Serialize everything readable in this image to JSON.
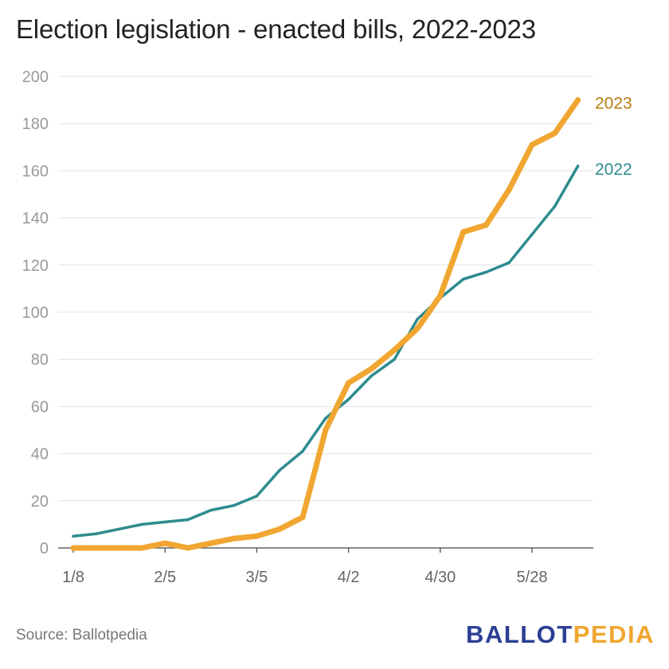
{
  "title": "Election legislation - enacted bills, 2022-2023",
  "source": "Source: Ballotpedia",
  "logo": {
    "part1": "BALLOT",
    "part2": "PEDIA"
  },
  "colors": {
    "series_2023": "#f0a630",
    "series_2022": "#2e8b8e",
    "label_2023": "#b77b0e",
    "label_2022": "#2e8b8e",
    "logo_blue": "#2b3f93",
    "logo_orange": "#f0a630"
  },
  "chart_data": {
    "type": "line",
    "title": "Election legislation - enacted bills, 2022-2023",
    "xlabel": "",
    "ylabel": "",
    "ylim": [
      0,
      200
    ],
    "yticks": [
      0,
      20,
      40,
      60,
      80,
      100,
      120,
      140,
      160,
      180,
      200
    ],
    "xticks": [
      "1/8",
      "2/5",
      "3/5",
      "4/2",
      "4/30",
      "5/28"
    ],
    "grid": true,
    "legend": "direct labels at line ends",
    "x": [
      "1/8",
      "1/15",
      "1/22",
      "1/29",
      "2/5",
      "2/12",
      "2/19",
      "2/26",
      "3/5",
      "3/12",
      "3/19",
      "3/26",
      "4/2",
      "4/9",
      "4/16",
      "4/23",
      "4/30",
      "5/7",
      "5/14",
      "5/21",
      "5/28",
      "6/4",
      "6/11"
    ],
    "series": [
      {
        "name": "2023",
        "values": [
          0,
          0,
          0,
          0,
          2,
          0,
          2,
          4,
          5,
          8,
          13,
          50,
          70,
          76,
          84,
          93,
          107,
          134,
          137,
          152,
          171,
          176,
          190
        ]
      },
      {
        "name": "2022",
        "values": [
          5,
          6,
          8,
          10,
          11,
          12,
          16,
          18,
          22,
          33,
          41,
          55,
          63,
          73,
          80,
          97,
          106,
          114,
          117,
          121,
          133,
          145,
          162
        ]
      }
    ]
  }
}
